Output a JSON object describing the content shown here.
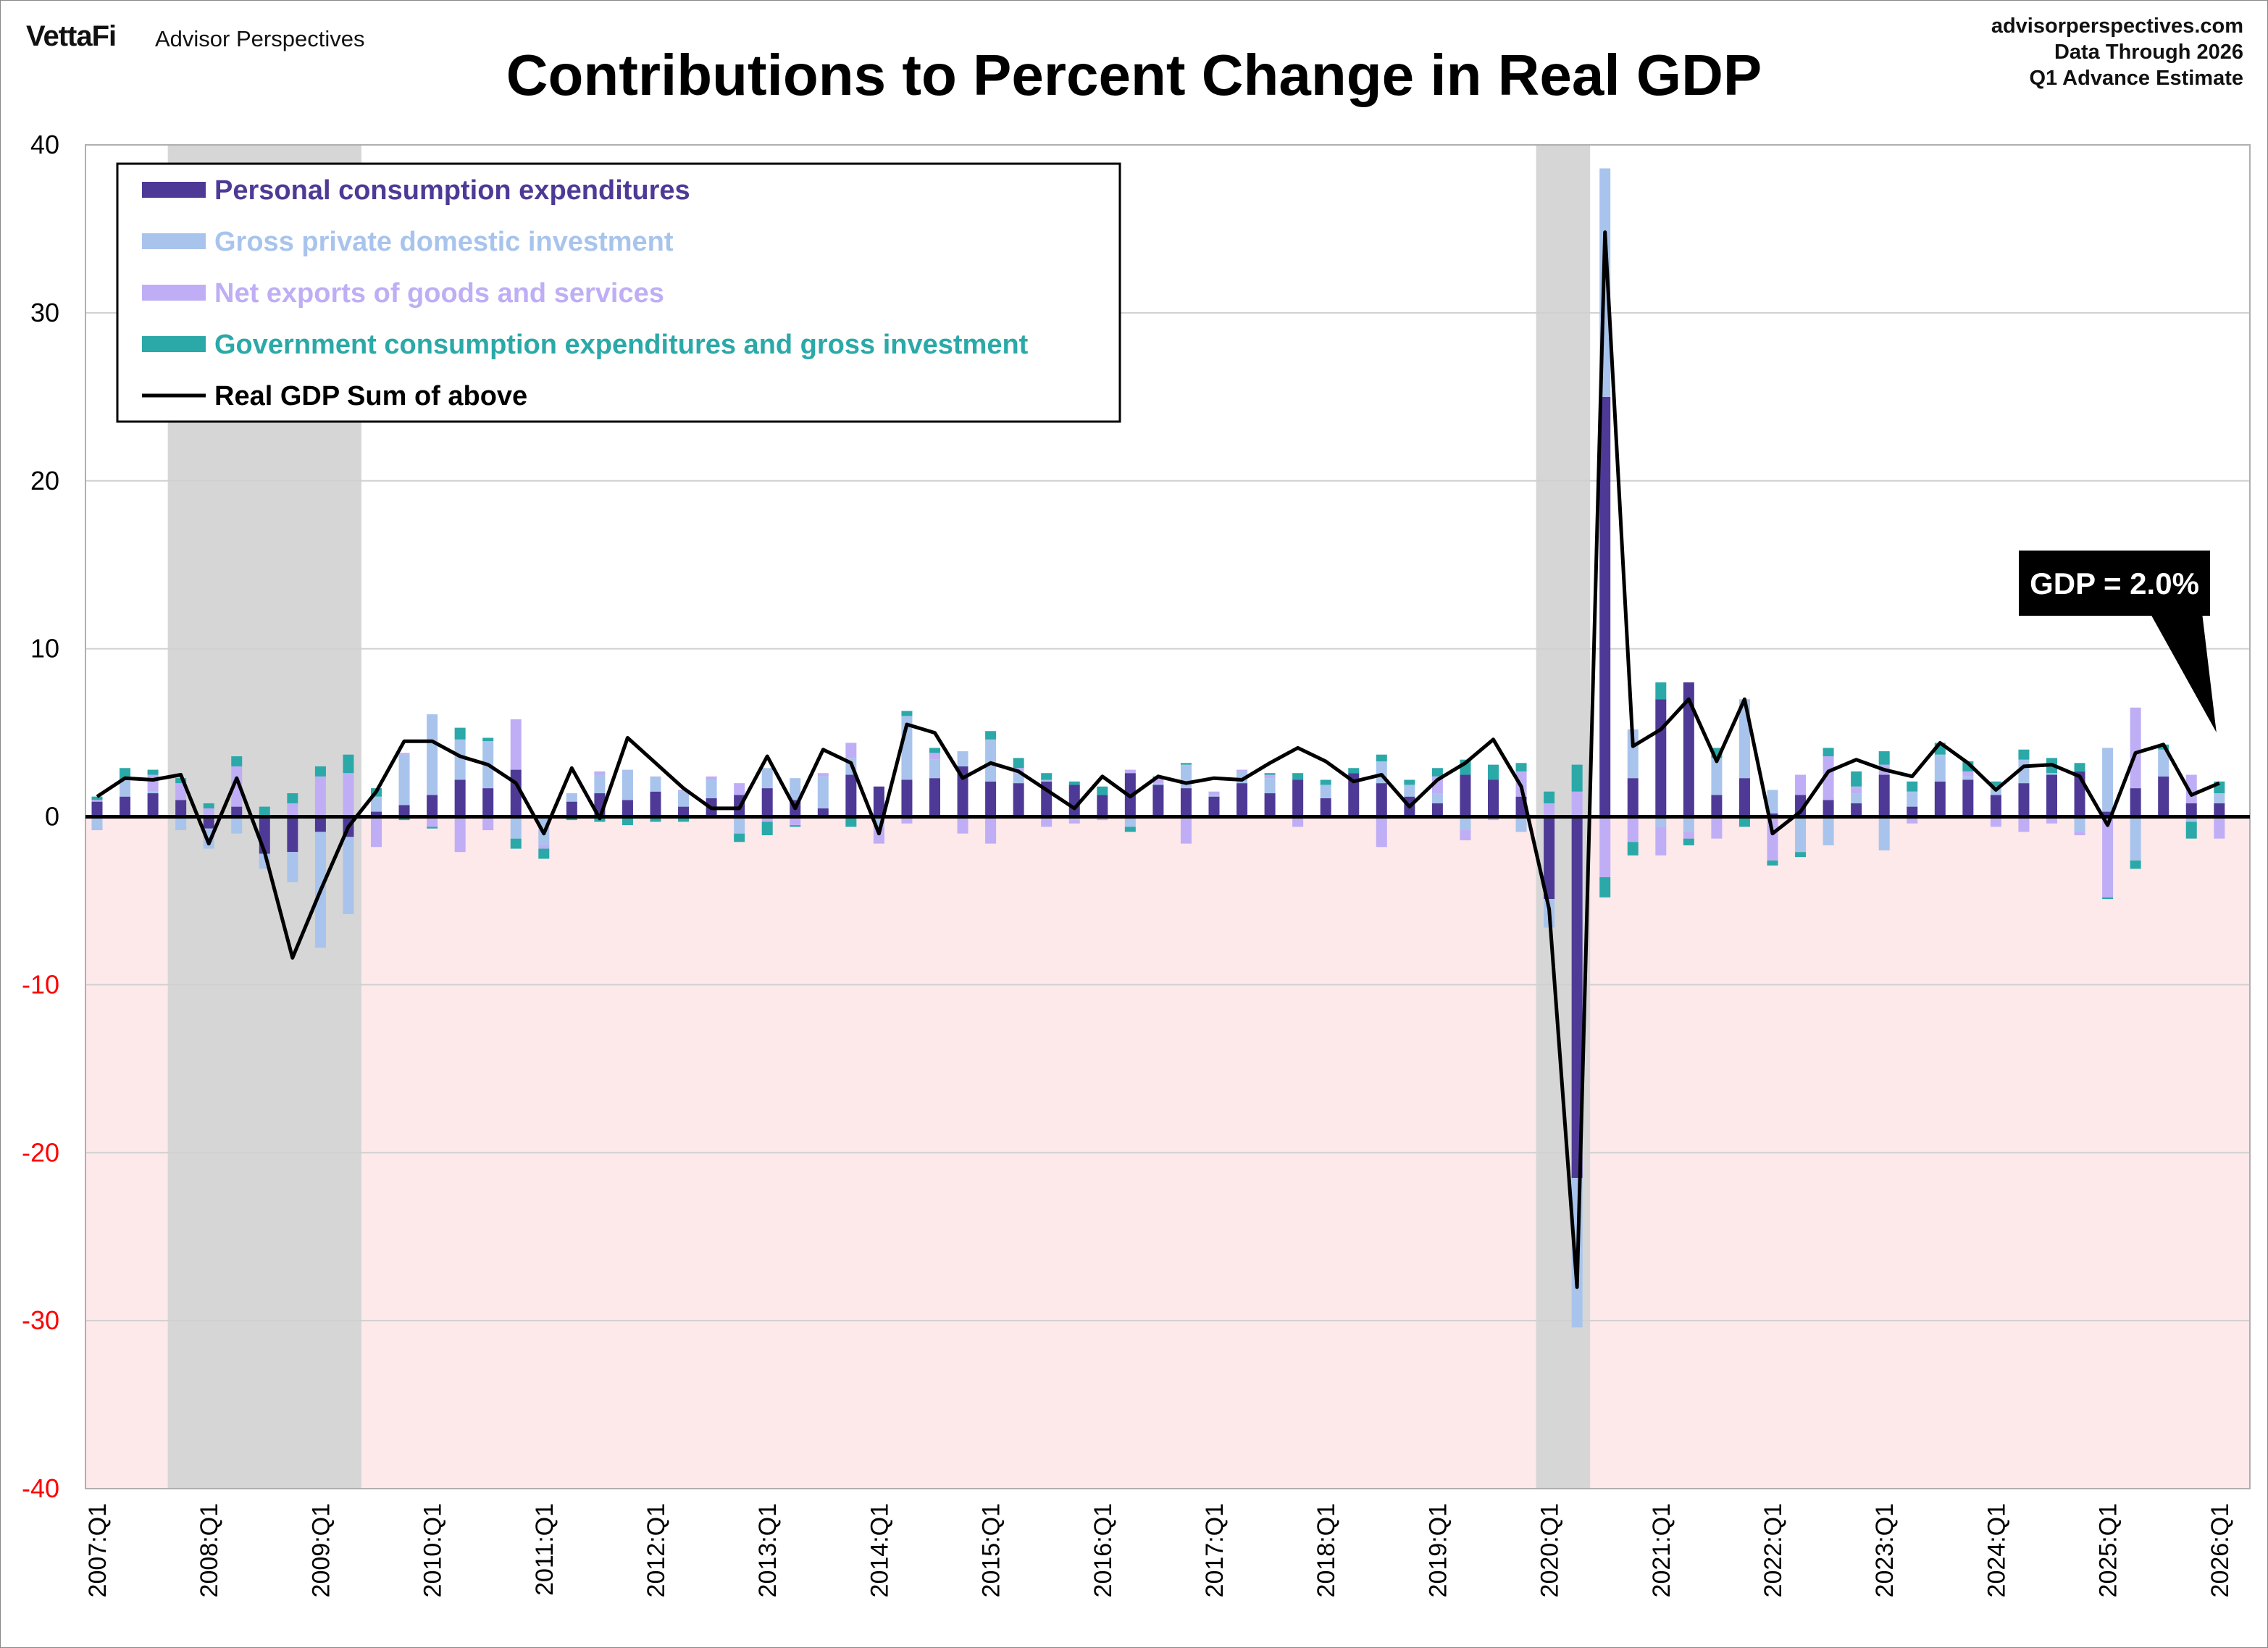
{
  "brand": {
    "logo": "VettaFi",
    "name": "Advisor Perspectives"
  },
  "source": {
    "site": "advisorperspectives.com",
    "line2": "Data Through 2026",
    "line3": "Q1 Advance Estimate"
  },
  "colors": {
    "pce": "#4e3a96",
    "investment": "#a8c4ec",
    "net_exports": "#bfaef5",
    "government": "#2aa9a8",
    "gdp_line": "#000000",
    "recession": "#d6d6d6",
    "negative_area": "#fde8ea",
    "negative_tick": "#ff0000"
  },
  "chart_data": {
    "type": "bar",
    "title": "Contributions to Percent Change in Real GDP",
    "ylim": [
      -40,
      40
    ],
    "yticks": [
      40,
      30,
      20,
      10,
      0,
      -10,
      -20,
      -30,
      -40
    ],
    "x_tick_labels": [
      "2007:Q1",
      "2008:Q1",
      "2009:Q1",
      "2010:Q1",
      "2011:Q1",
      "2012:Q1",
      "2013:Q1",
      "2014:Q1",
      "2015:Q1",
      "2016:Q1",
      "2017:Q1",
      "2018:Q1",
      "2019:Q1",
      "2020:Q1",
      "2021:Q1",
      "2022:Q1",
      "2023:Q1",
      "2024:Q1",
      "2025:Q1",
      "2026:Q1"
    ],
    "grid": "horizontal",
    "legend_placement": "top-left",
    "stacked": true,
    "recessions": [
      [
        "2007:Q4",
        "2009:Q2"
      ],
      [
        "2020:Q1",
        "2020:Q2"
      ]
    ],
    "annotation": {
      "text": "GDP = 2.0%",
      "points_to": "2026:Q1"
    },
    "quarters": [
      "2007:Q1",
      "2007:Q2",
      "2007:Q3",
      "2007:Q4",
      "2008:Q1",
      "2008:Q2",
      "2008:Q3",
      "2008:Q4",
      "2009:Q1",
      "2009:Q2",
      "2009:Q3",
      "2009:Q4",
      "2010:Q1",
      "2010:Q2",
      "2010:Q3",
      "2010:Q4",
      "2011:Q1",
      "2011:Q2",
      "2011:Q3",
      "2011:Q4",
      "2012:Q1",
      "2012:Q2",
      "2012:Q3",
      "2012:Q4",
      "2013:Q1",
      "2013:Q2",
      "2013:Q3",
      "2013:Q4",
      "2014:Q1",
      "2014:Q2",
      "2014:Q3",
      "2014:Q4",
      "2015:Q1",
      "2015:Q2",
      "2015:Q3",
      "2015:Q4",
      "2016:Q1",
      "2016:Q2",
      "2016:Q3",
      "2016:Q4",
      "2017:Q1",
      "2017:Q2",
      "2017:Q3",
      "2017:Q4",
      "2018:Q1",
      "2018:Q2",
      "2018:Q3",
      "2018:Q4",
      "2019:Q1",
      "2019:Q2",
      "2019:Q3",
      "2019:Q4",
      "2020:Q1",
      "2020:Q2",
      "2020:Q3",
      "2020:Q4",
      "2021:Q1",
      "2021:Q2",
      "2021:Q3",
      "2021:Q4",
      "2022:Q1",
      "2022:Q2",
      "2022:Q3",
      "2022:Q4",
      "2023:Q1",
      "2023:Q2",
      "2023:Q3",
      "2023:Q4",
      "2024:Q1",
      "2024:Q2",
      "2024:Q3",
      "2024:Q4",
      "2025:Q1",
      "2025:Q2",
      "2025:Q3",
      "2025:Q4",
      "2026:Q1"
    ],
    "series": [
      {
        "name": "Personal consumption expenditures",
        "key": "pce",
        "values": [
          0.9,
          1.2,
          1.4,
          1.0,
          -0.7,
          0.6,
          -2.2,
          -2.1,
          -0.9,
          -1.2,
          0.3,
          0.7,
          1.3,
          2.2,
          1.7,
          2.8,
          0.1,
          0.9,
          1.4,
          1.0,
          1.5,
          0.6,
          1.1,
          1.3,
          1.7,
          1.0,
          0.5,
          2.5,
          1.8,
          2.2,
          2.3,
          3.0,
          2.1,
          2.0,
          2.1,
          1.9,
          1.3,
          2.6,
          1.9,
          1.7,
          1.2,
          2.0,
          1.4,
          2.2,
          1.1,
          2.6,
          2.0,
          1.2,
          0.8,
          2.5,
          2.2,
          1.2,
          -4.9,
          -21.5,
          25.0,
          2.3,
          7.0,
          8.0,
          1.3,
          2.3,
          0.2,
          1.3,
          1.0,
          0.8,
          2.5,
          0.6,
          2.1,
          2.2,
          1.3,
          2.0,
          2.5,
          2.7,
          0.3,
          1.7,
          2.4,
          0.8,
          0.8
        ]
      },
      {
        "name": "Gross private domestic investment",
        "key": "investment",
        "values": [
          -0.8,
          1.0,
          0.1,
          -0.8,
          -1.2,
          -1.0,
          -0.9,
          -1.8,
          -6.9,
          -4.6,
          0.9,
          3.0,
          4.8,
          2.4,
          2.8,
          -1.3,
          -1.7,
          0.5,
          1.1,
          1.8,
          0.9,
          0.9,
          1.1,
          -1.0,
          1.2,
          1.3,
          1.9,
          1.0,
          -0.6,
          3.8,
          1.1,
          0.9,
          2.5,
          0.6,
          0.1,
          -0.2,
          -0.1,
          -0.6,
          0.1,
          1.4,
          0.1,
          0.7,
          0.9,
          -0.1,
          0.8,
          -0.1,
          1.3,
          0.7,
          0.6,
          -0.8,
          -0.1,
          -0.9,
          -1.7,
          -8.9,
          13.6,
          2.9,
          -0.6,
          -0.9,
          2.2,
          4.7,
          1.4,
          -2.1,
          -1.7,
          0.6,
          -2.0,
          0.9,
          1.6,
          0.2,
          0.5,
          1.4,
          0.1,
          -0.9,
          3.8,
          -2.6,
          1.6,
          -0.3,
          0.6
        ]
      },
      {
        "name": "Net exports of goods and services",
        "key": "net_exports",
        "values": [
          0.1,
          0.0,
          1.0,
          1.0,
          0.5,
          2.4,
          0.0,
          0.8,
          2.4,
          2.6,
          -1.8,
          0.1,
          -0.6,
          -2.1,
          -0.8,
          3.0,
          -0.2,
          0.0,
          0.2,
          -0.1,
          0.0,
          0.1,
          0.2,
          0.7,
          -0.3,
          -0.5,
          0.2,
          0.9,
          -1.0,
          -0.4,
          0.4,
          -1.0,
          -1.6,
          0.3,
          -0.6,
          -0.2,
          -0.1,
          0.2,
          0.3,
          -1.6,
          0.2,
          0.1,
          0.2,
          -0.5,
          0.0,
          0.0,
          -1.8,
          0.0,
          1.0,
          -0.6,
          -0.1,
          1.5,
          0.8,
          1.5,
          -3.6,
          -1.5,
          -1.7,
          -0.4,
          -1.3,
          -0.1,
          -2.6,
          1.2,
          2.6,
          0.4,
          0.6,
          -0.4,
          0.0,
          0.3,
          -0.6,
          -0.9,
          -0.4,
          -0.2,
          -4.8,
          4.8,
          0.0,
          1.7,
          -1.3
        ]
      },
      {
        "name": "Government consumption expenditures and gross investment",
        "key": "government",
        "values": [
          0.2,
          0.7,
          0.3,
          0.3,
          0.3,
          0.6,
          0.6,
          0.6,
          0.6,
          1.1,
          0.5,
          -0.2,
          -0.1,
          0.7,
          0.2,
          -0.6,
          -0.6,
          -0.2,
          -0.3,
          -0.4,
          -0.3,
          -0.3,
          0.0,
          -0.5,
          -0.8,
          -0.1,
          0.0,
          -0.6,
          0.0,
          0.3,
          0.3,
          0.0,
          0.5,
          0.6,
          0.4,
          0.2,
          0.5,
          -0.3,
          0.1,
          0.1,
          0.0,
          0.0,
          0.1,
          0.4,
          0.3,
          0.3,
          0.4,
          0.3,
          0.5,
          0.9,
          0.9,
          0.5,
          0.7,
          1.6,
          -1.2,
          -0.8,
          1.0,
          -0.4,
          0.6,
          -0.5,
          -0.3,
          -0.3,
          0.5,
          0.9,
          0.8,
          0.6,
          0.7,
          0.6,
          0.3,
          0.6,
          0.9,
          0.5,
          -0.1,
          -0.5,
          0.3,
          -1.0,
          0.7
        ]
      }
    ],
    "line": {
      "name": "Real GDP Sum of above",
      "values": [
        1.2,
        2.3,
        2.2,
        2.5,
        -1.6,
        2.3,
        -2.1,
        -8.4,
        -4.4,
        -0.6,
        1.5,
        4.5,
        4.5,
        3.6,
        3.1,
        2.0,
        -1.0,
        2.9,
        -0.1,
        4.7,
        3.2,
        1.7,
        0.5,
        0.5,
        3.6,
        0.5,
        4.0,
        3.2,
        -1.0,
        5.5,
        5.0,
        2.3,
        3.2,
        2.7,
        1.6,
        0.5,
        2.4,
        1.2,
        2.4,
        2.0,
        2.3,
        2.2,
        3.2,
        4.1,
        3.3,
        2.1,
        2.5,
        0.6,
        2.2,
        3.2,
        4.6,
        1.8,
        -5.5,
        -28.0,
        34.8,
        4.2,
        5.2,
        7.0,
        3.3,
        7.0,
        -1.0,
        0.3,
        2.7,
        3.4,
        2.8,
        2.4,
        4.4,
        3.2,
        1.6,
        3.0,
        3.1,
        2.4,
        -0.5,
        3.8,
        4.3,
        1.3,
        2.0
      ]
    },
    "legend": [
      {
        "key": "pce",
        "label": "Personal consumption expenditures"
      },
      {
        "key": "investment",
        "label": "Gross private domestic investment"
      },
      {
        "key": "net_exports",
        "label": "Net exports of goods and services"
      },
      {
        "key": "government",
        "label": "Government consumption expenditures and gross investment"
      },
      {
        "key": "gdp_line",
        "label": "Real GDP Sum of above"
      }
    ]
  }
}
